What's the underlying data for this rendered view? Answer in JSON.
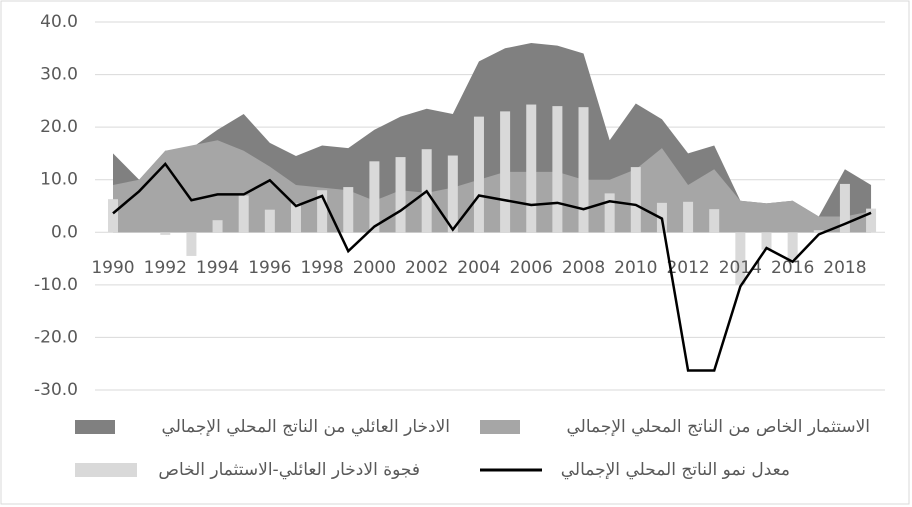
{
  "chart_data": {
    "type": "combo",
    "categories": [
      "1990",
      null,
      "1992",
      null,
      "1994",
      null,
      "1996",
      null,
      "1998",
      null,
      "2000",
      null,
      "2002",
      null,
      "2004",
      null,
      "2006",
      null,
      "2008",
      null,
      "2010",
      null,
      "2012",
      null,
      "2014",
      null,
      "2016",
      null,
      "2018",
      null
    ],
    "series": [
      {
        "name": "الادخار العائلي من الناتج المحلي الإجمالي",
        "type": "area",
        "color": "#808080",
        "values": [
          15,
          10,
          15.5,
          16,
          19.5,
          22.5,
          17,
          14.5,
          16.5,
          16,
          19.5,
          22,
          23.5,
          22.5,
          32.5,
          35,
          36,
          35.5,
          34,
          17.5,
          24.5,
          21.5,
          15,
          16.5,
          6,
          5.5,
          6,
          3,
          12,
          9
        ]
      },
      {
        "name": "الاستثمار الخاص من الناتج المحلي الإجمالي",
        "type": "area",
        "color": "#a6a6a6",
        "values": [
          9,
          10,
          15.5,
          16.5,
          17.5,
          15.5,
          12.5,
          9,
          8.5,
          8,
          6,
          8,
          7.5,
          8.5,
          10,
          11.5,
          11.5,
          11.5,
          10,
          10,
          12,
          16,
          9,
          12,
          6,
          5.5,
          6,
          3,
          3,
          4
        ]
      },
      {
        "name": "فجوة الادخار العائلي-الاستثمار الخاص",
        "type": "bar",
        "color": "#d9d9d9",
        "values": [
          6.3,
          0,
          -0.5,
          -4.5,
          2.3,
          7,
          4.3,
          5.5,
          8,
          8.6,
          13.5,
          14.3,
          15.8,
          14.6,
          22,
          23,
          24.3,
          24,
          23.8,
          7.4,
          12.4,
          5.6,
          5.8,
          4.4,
          -10,
          -3.3,
          -5.2,
          0.4,
          9.2,
          4.5
        ]
      },
      {
        "name": "معدل نمو الناتج المحلي الإجمالي",
        "type": "line",
        "color": "#000000",
        "values": [
          3.6,
          7.8,
          13,
          6.1,
          7.2,
          7.2,
          9.9,
          5,
          6.9,
          -3.6,
          1.1,
          4.1,
          7.8,
          0.5,
          7,
          6.1,
          5.2,
          5.6,
          4.4,
          5.9,
          5.2,
          2.6,
          -26.3,
          -26.3,
          -10.3,
          -3,
          -5.6,
          -0.4,
          1.6,
          3.7
        ]
      }
    ],
    "ylim": [
      -30,
      40
    ],
    "yticks": [
      {
        "value": -30,
        "label": "-30.0"
      },
      {
        "value": -20,
        "label": "-20.0"
      },
      {
        "value": -10,
        "label": "-10.0"
      },
      {
        "value": 0,
        "label": "0.0"
      },
      {
        "value": 10,
        "label": "10.0"
      },
      {
        "value": 20,
        "label": "20.0"
      },
      {
        "value": 30,
        "label": "30.0"
      },
      {
        "value": 40,
        "label": "40.0"
      }
    ],
    "grid": true
  }
}
